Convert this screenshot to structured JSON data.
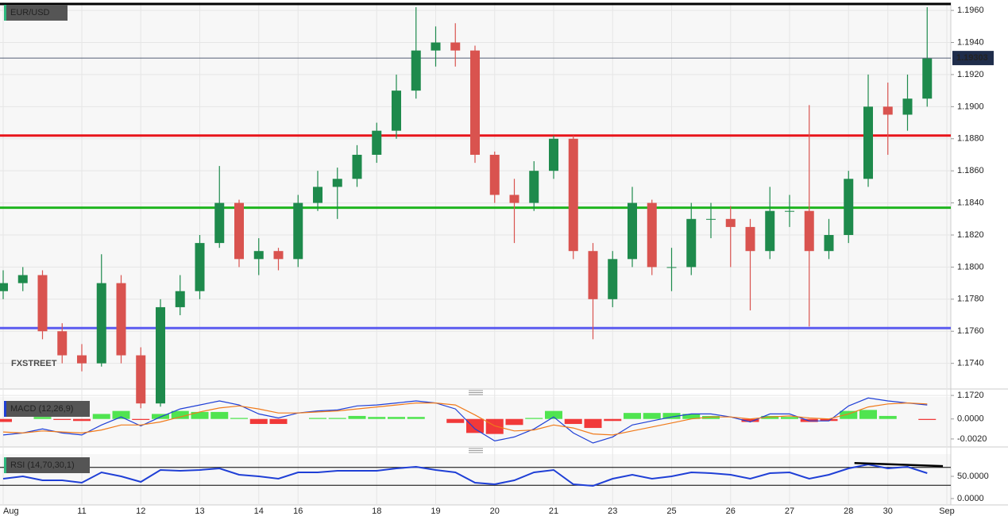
{
  "chart_data": [
    {
      "type": "candlestick",
      "title": "EUR/USD",
      "watermark": "FXSTREET",
      "categories": [
        "Aug",
        null,
        null,
        null,
        "11",
        null,
        null,
        "12",
        null,
        null,
        "13",
        null,
        null,
        "14",
        null,
        "16",
        null,
        null,
        null,
        "18",
        null,
        null,
        "19",
        null,
        null,
        "20",
        null,
        null,
        "21",
        null,
        null,
        "23",
        null,
        null,
        "25",
        null,
        null,
        "26",
        null,
        null,
        "27",
        null,
        null,
        "28",
        null,
        "30",
        null,
        null,
        "Sep"
      ],
      "open": [
        1.1785,
        1.179,
        1.1795,
        1.176,
        1.1745,
        1.174,
        1.179,
        1.1745,
        1.1715,
        1.1775,
        1.1785,
        1.1815,
        1.184,
        1.1805,
        1.181,
        1.1805,
        1.184,
        1.185,
        1.1855,
        1.187,
        1.1885,
        1.191,
        1.1935,
        1.194,
        1.1935,
        1.187,
        1.1845,
        1.184,
        1.186,
        1.188,
        1.181,
        1.178,
        1.1805,
        1.184,
        1.18,
        1.18,
        1.183,
        1.183,
        1.1825,
        1.181,
        1.1835,
        1.1835,
        1.181,
        1.182,
        1.1855,
        1.19,
        1.1895,
        1.1905,
        null
      ],
      "high": [
        1.1798,
        1.18,
        1.1798,
        1.1765,
        1.1752,
        1.1808,
        1.1795,
        1.175,
        1.178,
        1.1795,
        1.182,
        1.1863,
        1.1842,
        1.1818,
        1.1812,
        1.1845,
        1.186,
        1.1862,
        1.1876,
        1.189,
        1.192,
        1.1962,
        1.195,
        1.1952,
        1.1938,
        1.1872,
        1.1855,
        1.1866,
        1.1882,
        1.1882,
        1.1815,
        1.181,
        1.185,
        1.1842,
        1.1812,
        1.184,
        1.184,
        1.1838,
        1.183,
        1.185,
        1.1845,
        1.1901,
        1.183,
        1.186,
        1.192,
        1.1915,
        1.192,
        1.1962,
        null
      ],
      "low": [
        1.178,
        1.1785,
        1.1755,
        1.174,
        1.1735,
        1.1738,
        1.174,
        1.1712,
        1.1713,
        1.177,
        1.178,
        1.1812,
        1.18,
        1.1795,
        1.1798,
        1.18,
        1.1835,
        1.183,
        1.185,
        1.1865,
        1.188,
        1.1905,
        1.1925,
        1.1925,
        1.1865,
        1.184,
        1.1815,
        1.1835,
        1.1855,
        1.1805,
        1.1755,
        1.1775,
        1.18,
        1.1795,
        1.1785,
        1.1795,
        1.1818,
        1.18,
        1.1773,
        1.1805,
        1.1825,
        1.1763,
        1.1805,
        1.1815,
        1.185,
        1.187,
        1.1885,
        1.19,
        null
      ],
      "close": [
        1.179,
        1.1795,
        1.176,
        1.1745,
        1.174,
        1.179,
        1.1745,
        1.1715,
        1.1775,
        1.1785,
        1.1815,
        1.184,
        1.1805,
        1.181,
        1.1805,
        1.184,
        1.185,
        1.1855,
        1.187,
        1.1885,
        1.191,
        1.1935,
        1.194,
        1.1935,
        1.187,
        1.1845,
        1.184,
        1.186,
        1.188,
        1.181,
        1.178,
        1.1805,
        1.184,
        1.18,
        1.18,
        1.183,
        1.183,
        1.1825,
        1.181,
        1.1835,
        1.1835,
        1.181,
        1.182,
        1.1855,
        1.19,
        1.1895,
        1.1905,
        1.193,
        null
      ],
      "up_color": "#1e8a4c",
      "down_color": "#d9534f",
      "ylim": [
        1.1724,
        1.1965
      ],
      "yticks": [
        {
          "value": 1.172,
          "label": "1.1720"
        },
        {
          "value": 1.174,
          "label": "1.1740"
        },
        {
          "value": 1.176,
          "label": "1.1760"
        },
        {
          "value": 1.178,
          "label": "1.1780"
        },
        {
          "value": 1.18,
          "label": "1.1800"
        },
        {
          "value": 1.182,
          "label": "1.1820"
        },
        {
          "value": 1.184,
          "label": "1.1840"
        },
        {
          "value": 1.186,
          "label": "1.1860"
        },
        {
          "value": 1.188,
          "label": "1.1880"
        },
        {
          "value": 1.19,
          "label": "1.1900"
        },
        {
          "value": 1.192,
          "label": "1.1920"
        },
        {
          "value": 1.194,
          "label": "1.1940"
        },
        {
          "value": 1.196,
          "label": "1.1960"
        }
      ],
      "grid": true,
      "hlines": [
        {
          "value": 1.1964,
          "color": "#000000"
        },
        {
          "value": 1.1882,
          "color": "#e8141a"
        },
        {
          "value": 1.1837,
          "color": "#1fb51f"
        },
        {
          "value": 1.1762,
          "color": "#5b5bf0"
        }
      ],
      "last_price": 1.19303,
      "last_price_color": "#1f2d4b"
    },
    {
      "type": "macd",
      "title": "MACD (12,26,9)",
      "lines": [
        {
          "color": "#1f3fd6",
          "values": [
            -0.0016,
            -0.0014,
            -0.001,
            -0.0014,
            -0.0016,
            -0.0006,
            0.0002,
            -0.0007,
            0.0002,
            0.001,
            0.0014,
            0.0018,
            0.0014,
            0.0005,
            0.0001,
            0.0006,
            0.0008,
            0.0009,
            0.0013,
            0.0014,
            0.0016,
            0.0018,
            0.0016,
            0.001,
            -0.001,
            -0.0022,
            -0.0018,
            -0.001,
            0.0002,
            -0.0014,
            -0.0024,
            -0.0018,
            -0.0006,
            -0.0002,
            0.0002,
            0.0005,
            0.0005,
            0.0002,
            -0.0003,
            0.0005,
            0.0005,
            -0.0002,
            -0.0002,
            0.0013,
            0.0021,
            0.0018,
            0.0016,
            0.0014,
            null
          ]
        },
        {
          "color": "#f07a1a",
          "values": [
            -0.0013,
            -0.0014,
            -0.0012,
            -0.0013,
            -0.0014,
            -0.0011,
            -0.0006,
            -0.0006,
            -0.0003,
            0.0002,
            0.0007,
            0.0011,
            0.0013,
            0.001,
            0.0006,
            0.0006,
            0.0007,
            0.0008,
            0.001,
            0.0012,
            0.0014,
            0.0016,
            0.0016,
            0.0014,
            0.0004,
            -0.0007,
            -0.0012,
            -0.0011,
            -0.0006,
            -0.0009,
            -0.0015,
            -0.0016,
            -0.0012,
            -0.0008,
            -0.0004,
            0.0,
            0.0002,
            0.0002,
            0.0,
            0.0002,
            0.0003,
            0.0001,
            0.0,
            0.0005,
            0.0012,
            0.0015,
            0.0016,
            0.0015,
            null
          ]
        }
      ],
      "histogram": {
        "up_color": "#33e033",
        "down_color": "#f01818",
        "values": [
          -0.0003,
          0.0,
          0.0002,
          -0.0001,
          -0.0002,
          0.0005,
          0.0008,
          -0.0001,
          0.0005,
          0.0008,
          0.0007,
          0.0007,
          0.0001,
          -0.0005,
          -0.0005,
          0.0,
          0.0001,
          0.0001,
          0.0003,
          0.0002,
          0.0002,
          0.0002,
          0.0,
          -0.0004,
          -0.0014,
          -0.0015,
          -0.0006,
          0.0001,
          0.0008,
          -0.0005,
          -0.0009,
          -0.0002,
          0.0006,
          0.0006,
          0.0006,
          0.0005,
          0.0003,
          0.0,
          -0.0003,
          0.0003,
          0.0002,
          -0.0003,
          -0.0002,
          0.0008,
          0.0009,
          0.0003,
          0.0,
          -0.0001,
          null
        ]
      },
      "ylim": [
        -0.0028,
        0.0022
      ],
      "yticks": [
        {
          "value": 0,
          "label": "0.0000"
        },
        {
          "value": -0.002,
          "label": "-0.0020"
        }
      ]
    },
    {
      "type": "line",
      "title": "RSI (14,70,30,1)",
      "color": "#1f3fd6",
      "values": [
        44.6,
        50,
        41.1,
        41.1,
        35.7,
        58.9,
        50,
        37.5,
        64.3,
        62.5,
        64.3,
        67.9,
        53.6,
        50,
        44.6,
        58.9,
        58.9,
        62.5,
        62.5,
        62.5,
        67.9,
        71.4,
        64.3,
        58.9,
        35.7,
        32.1,
        41.1,
        58.9,
        64.3,
        32.1,
        28.6,
        44.6,
        53.6,
        44.6,
        50,
        58.9,
        57.1,
        53.6,
        44.6,
        57.1,
        58.9,
        44.6,
        53.6,
        67.9,
        76.8,
        67.9,
        71.4,
        57.1,
        null
      ],
      "ylim": [
        -14.3,
        100
      ],
      "yticks": [
        {
          "value": 50,
          "label": "50.0000"
        },
        {
          "value": 0,
          "label": "0.0000"
        }
      ],
      "hlines": [
        70,
        30
      ],
      "trendline": {
        "x": [
          43.3,
          47.8
        ],
        "y": [
          80,
          73
        ]
      }
    }
  ]
}
